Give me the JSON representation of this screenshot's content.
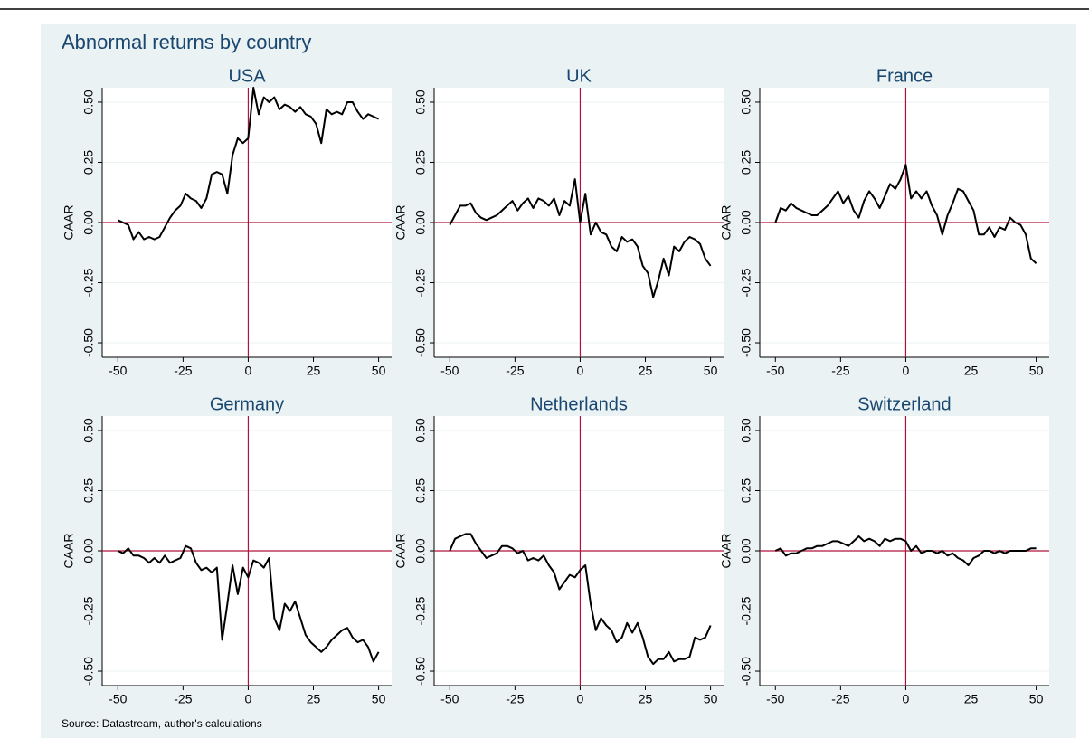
{
  "title": "Abnormal returns by country",
  "source": "Source: Datastream, author's calculations",
  "chart_data": [
    {
      "type": "line",
      "title": "USA",
      "ylabel": "CAAR",
      "grid": true,
      "xline": 0,
      "yline": 0,
      "refline_color": "#b0143c",
      "xlim": [
        -56,
        55
      ],
      "ylim": [
        -0.56,
        0.56
      ],
      "xticks": [
        -50,
        -25,
        0,
        25,
        50
      ],
      "yticks": [
        {
          "value": -0.5,
          "label": "-0.50"
        },
        {
          "value": -0.25,
          "label": "-0.25"
        },
        {
          "value": 0,
          "label": "0.00"
        },
        {
          "value": 0.25,
          "label": "0.25"
        },
        {
          "value": 0.5,
          "label": "0.50"
        }
      ],
      "x": [
        -50,
        -48,
        -46,
        -44,
        -42,
        -40,
        -38,
        -36,
        -34,
        -32,
        -30,
        -28,
        -26,
        -24,
        -22,
        -20,
        -18,
        -16,
        -14,
        -12,
        -10,
        -8,
        -6,
        -4,
        -2,
        0,
        2,
        4,
        6,
        8,
        10,
        12,
        14,
        16,
        18,
        20,
        22,
        24,
        26,
        28,
        30,
        32,
        34,
        36,
        38,
        40,
        42,
        44,
        46,
        48,
        50
      ],
      "series": [
        {
          "color": "#000000",
          "values": [
            0.01,
            0.0,
            -0.01,
            -0.07,
            -0.04,
            -0.07,
            -0.06,
            -0.07,
            -0.06,
            -0.02,
            0.02,
            0.05,
            0.07,
            0.12,
            0.1,
            0.09,
            0.06,
            0.1,
            0.2,
            0.21,
            0.2,
            0.12,
            0.28,
            0.35,
            0.33,
            0.35,
            0.56,
            0.45,
            0.52,
            0.5,
            0.52,
            0.47,
            0.49,
            0.48,
            0.46,
            0.48,
            0.45,
            0.44,
            0.41,
            0.33,
            0.47,
            0.45,
            0.46,
            0.45,
            0.5,
            0.5,
            0.46,
            0.43,
            0.45,
            0.44,
            0.43
          ]
        }
      ]
    },
    {
      "type": "line",
      "title": "UK",
      "ylabel": "CAAR",
      "grid": true,
      "xline": 0,
      "yline": 0,
      "refline_color": "#b0143c",
      "xlim": [
        -56,
        55
      ],
      "ylim": [
        -0.56,
        0.56
      ],
      "xticks": [
        -50,
        -25,
        0,
        25,
        50
      ],
      "yticks": [
        {
          "value": -0.5,
          "label": "-0.50"
        },
        {
          "value": -0.25,
          "label": "-0.25"
        },
        {
          "value": 0,
          "label": "0.00"
        },
        {
          "value": 0.25,
          "label": "0.25"
        },
        {
          "value": 0.5,
          "label": "0.50"
        }
      ],
      "x": [
        -50,
        -48,
        -46,
        -44,
        -42,
        -40,
        -38,
        -36,
        -34,
        -32,
        -30,
        -28,
        -26,
        -24,
        -22,
        -20,
        -18,
        -16,
        -14,
        -12,
        -10,
        -8,
        -6,
        -4,
        -2,
        0,
        2,
        4,
        6,
        8,
        10,
        12,
        14,
        16,
        18,
        20,
        22,
        24,
        26,
        28,
        30,
        32,
        34,
        36,
        38,
        40,
        42,
        44,
        46,
        48,
        50
      ],
      "series": [
        {
          "color": "#000000",
          "values": [
            -0.01,
            0.03,
            0.07,
            0.07,
            0.08,
            0.04,
            0.02,
            0.01,
            0.02,
            0.03,
            0.05,
            0.07,
            0.09,
            0.05,
            0.08,
            0.1,
            0.06,
            0.1,
            0.09,
            0.07,
            0.1,
            0.03,
            0.09,
            0.07,
            0.18,
            0.0,
            0.12,
            -0.05,
            0.0,
            -0.04,
            -0.05,
            -0.1,
            -0.12,
            -0.06,
            -0.08,
            -0.07,
            -0.1,
            -0.18,
            -0.21,
            -0.31,
            -0.24,
            -0.15,
            -0.22,
            -0.1,
            -0.12,
            -0.08,
            -0.06,
            -0.07,
            -0.09,
            -0.15,
            -0.18
          ]
        }
      ]
    },
    {
      "type": "line",
      "title": "France",
      "ylabel": "CAAR",
      "grid": true,
      "xline": 0,
      "yline": 0,
      "refline_color": "#b0143c",
      "xlim": [
        -56,
        55
      ],
      "ylim": [
        -0.56,
        0.56
      ],
      "xticks": [
        -50,
        -25,
        0,
        25,
        50
      ],
      "yticks": [
        {
          "value": -0.5,
          "label": "-0.50"
        },
        {
          "value": -0.25,
          "label": "-0.25"
        },
        {
          "value": 0,
          "label": "0.00"
        },
        {
          "value": 0.25,
          "label": "0.25"
        },
        {
          "value": 0.5,
          "label": "0.50"
        }
      ],
      "x": [
        -50,
        -48,
        -46,
        -44,
        -42,
        -40,
        -38,
        -36,
        -34,
        -32,
        -30,
        -28,
        -26,
        -24,
        -22,
        -20,
        -18,
        -16,
        -14,
        -12,
        -10,
        -8,
        -6,
        -4,
        -2,
        0,
        2,
        4,
        6,
        8,
        10,
        12,
        14,
        16,
        18,
        20,
        22,
        24,
        26,
        28,
        30,
        32,
        34,
        36,
        38,
        40,
        42,
        44,
        46,
        48,
        50
      ],
      "series": [
        {
          "color": "#000000",
          "values": [
            0.0,
            0.06,
            0.05,
            0.08,
            0.06,
            0.05,
            0.04,
            0.03,
            0.03,
            0.05,
            0.07,
            0.1,
            0.13,
            0.08,
            0.11,
            0.05,
            0.02,
            0.09,
            0.13,
            0.1,
            0.06,
            0.11,
            0.16,
            0.14,
            0.18,
            0.24,
            0.1,
            0.13,
            0.1,
            0.13,
            0.07,
            0.03,
            -0.05,
            0.03,
            0.08,
            0.14,
            0.13,
            0.09,
            0.05,
            -0.05,
            -0.05,
            -0.02,
            -0.06,
            -0.02,
            -0.03,
            0.02,
            0.0,
            -0.01,
            -0.05,
            -0.15,
            -0.17
          ]
        }
      ]
    },
    {
      "type": "line",
      "title": "Germany",
      "ylabel": "CAAR",
      "grid": true,
      "xline": 0,
      "yline": 0,
      "refline_color": "#b0143c",
      "xlim": [
        -56,
        55
      ],
      "ylim": [
        -0.56,
        0.56
      ],
      "xticks": [
        -50,
        -25,
        0,
        25,
        50
      ],
      "yticks": [
        {
          "value": -0.5,
          "label": "-0.50"
        },
        {
          "value": -0.25,
          "label": "-0.25"
        },
        {
          "value": 0,
          "label": "0.00"
        },
        {
          "value": 0.25,
          "label": "0.25"
        },
        {
          "value": 0.5,
          "label": "0.50"
        }
      ],
      "x": [
        -50,
        -48,
        -46,
        -44,
        -42,
        -40,
        -38,
        -36,
        -34,
        -32,
        -30,
        -28,
        -26,
        -24,
        -22,
        -20,
        -18,
        -16,
        -14,
        -12,
        -10,
        -8,
        -6,
        -4,
        -2,
        0,
        2,
        4,
        6,
        8,
        10,
        12,
        14,
        16,
        18,
        20,
        22,
        24,
        26,
        28,
        30,
        32,
        34,
        36,
        38,
        40,
        42,
        44,
        46,
        48,
        50
      ],
      "series": [
        {
          "color": "#000000",
          "values": [
            0.0,
            -0.01,
            0.01,
            -0.02,
            -0.02,
            -0.03,
            -0.05,
            -0.03,
            -0.05,
            -0.02,
            -0.05,
            -0.04,
            -0.03,
            0.02,
            0.01,
            -0.05,
            -0.08,
            -0.07,
            -0.09,
            -0.07,
            -0.37,
            -0.22,
            -0.06,
            -0.18,
            -0.07,
            -0.11,
            -0.04,
            -0.05,
            -0.07,
            -0.03,
            -0.28,
            -0.33,
            -0.22,
            -0.25,
            -0.21,
            -0.28,
            -0.35,
            -0.38,
            -0.4,
            -0.42,
            -0.4,
            -0.37,
            -0.35,
            -0.33,
            -0.32,
            -0.36,
            -0.38,
            -0.37,
            -0.4,
            -0.46,
            -0.42
          ]
        }
      ]
    },
    {
      "type": "line",
      "title": "Netherlands",
      "ylabel": "CAAR",
      "grid": true,
      "xline": 0,
      "yline": 0,
      "refline_color": "#b0143c",
      "xlim": [
        -56,
        55
      ],
      "ylim": [
        -0.56,
        0.56
      ],
      "xticks": [
        -50,
        -25,
        0,
        25,
        50
      ],
      "yticks": [
        {
          "value": -0.5,
          "label": "-0.50"
        },
        {
          "value": -0.25,
          "label": "-0.25"
        },
        {
          "value": 0,
          "label": "0.00"
        },
        {
          "value": 0.25,
          "label": "0.25"
        },
        {
          "value": 0.5,
          "label": "0.50"
        }
      ],
      "x": [
        -50,
        -48,
        -46,
        -44,
        -42,
        -40,
        -38,
        -36,
        -34,
        -32,
        -30,
        -28,
        -26,
        -24,
        -22,
        -20,
        -18,
        -16,
        -14,
        -12,
        -10,
        -8,
        -6,
        -4,
        -2,
        0,
        2,
        4,
        6,
        8,
        10,
        12,
        14,
        16,
        18,
        20,
        22,
        24,
        26,
        28,
        30,
        32,
        34,
        36,
        38,
        40,
        42,
        44,
        46,
        48,
        50
      ],
      "series": [
        {
          "color": "#000000",
          "values": [
            0.0,
            0.05,
            0.06,
            0.07,
            0.07,
            0.03,
            0.0,
            -0.03,
            -0.02,
            -0.01,
            0.02,
            0.02,
            0.01,
            -0.01,
            0.0,
            -0.04,
            -0.03,
            -0.04,
            -0.02,
            -0.06,
            -0.09,
            -0.16,
            -0.13,
            -0.1,
            -0.11,
            -0.08,
            -0.06,
            -0.22,
            -0.33,
            -0.28,
            -0.31,
            -0.33,
            -0.38,
            -0.36,
            -0.3,
            -0.34,
            -0.3,
            -0.36,
            -0.44,
            -0.47,
            -0.45,
            -0.45,
            -0.42,
            -0.46,
            -0.45,
            -0.45,
            -0.44,
            -0.36,
            -0.37,
            -0.36,
            -0.31
          ]
        }
      ]
    },
    {
      "type": "line",
      "title": "Switzerland",
      "ylabel": "CAAR",
      "grid": true,
      "xline": 0,
      "yline": 0,
      "refline_color": "#b0143c",
      "xlim": [
        -56,
        55
      ],
      "ylim": [
        -0.56,
        0.56
      ],
      "xticks": [
        -50,
        -25,
        0,
        25,
        50
      ],
      "yticks": [
        {
          "value": -0.5,
          "label": "-0.50"
        },
        {
          "value": -0.25,
          "label": "-0.25"
        },
        {
          "value": 0,
          "label": "0.00"
        },
        {
          "value": 0.25,
          "label": "0.25"
        },
        {
          "value": 0.5,
          "label": "0.50"
        }
      ],
      "x": [
        -50,
        -48,
        -46,
        -44,
        -42,
        -40,
        -38,
        -36,
        -34,
        -32,
        -30,
        -28,
        -26,
        -24,
        -22,
        -20,
        -18,
        -16,
        -14,
        -12,
        -10,
        -8,
        -6,
        -4,
        -2,
        0,
        2,
        4,
        6,
        8,
        10,
        12,
        14,
        16,
        18,
        20,
        22,
        24,
        26,
        28,
        30,
        32,
        34,
        36,
        38,
        40,
        42,
        44,
        46,
        48,
        50
      ],
      "series": [
        {
          "color": "#000000",
          "values": [
            0.0,
            0.01,
            -0.02,
            -0.01,
            -0.01,
            0.0,
            0.01,
            0.01,
            0.02,
            0.02,
            0.03,
            0.04,
            0.04,
            0.03,
            0.02,
            0.04,
            0.06,
            0.04,
            0.05,
            0.04,
            0.02,
            0.05,
            0.04,
            0.05,
            0.05,
            0.04,
            0.0,
            0.02,
            -0.01,
            0.0,
            0.0,
            -0.01,
            0.0,
            -0.02,
            -0.01,
            -0.03,
            -0.04,
            -0.06,
            -0.03,
            -0.02,
            0.0,
            0.0,
            -0.01,
            0.0,
            -0.01,
            0.0,
            0.0,
            0.0,
            0.0,
            0.01,
            0.01
          ]
        }
      ]
    }
  ]
}
